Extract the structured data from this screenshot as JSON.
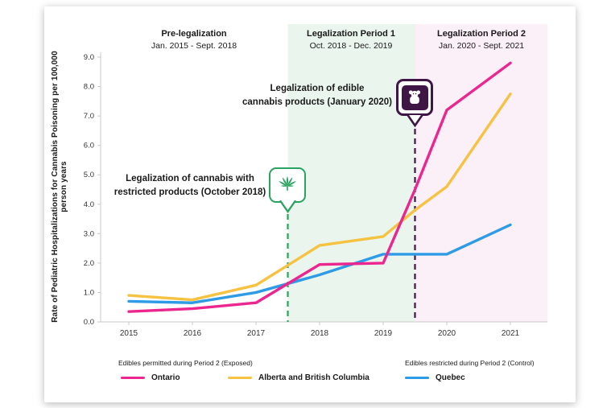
{
  "figure": {
    "y_axis_label": "Rate of Pediatric Hospitalizations for Cannabis Poisoning per 100,000 person years",
    "period_headers": [
      {
        "title": "Pre-legalization",
        "range": "Jan. 2015 - Sept. 2018"
      },
      {
        "title": "Legalization Period 1",
        "range": "Oct. 2018 - Dec. 2019"
      },
      {
        "title": "Legalization Period 2",
        "range": "Jan. 2020 - Sept. 2021"
      }
    ],
    "callouts": [
      {
        "line1": "Legalization of cannabis with",
        "line2": "restricted products (October 2018)",
        "icon": "cannabis-leaf-icon",
        "color": "#2aa360"
      },
      {
        "line1": "Legalization of edible",
        "line2": "cannabis products (January 2020)",
        "icon": "gummy-bear-icon",
        "color": "#3f1546"
      }
    ],
    "legend": {
      "group_labels": [
        "Edibles permitted during Period 2 (Exposed)",
        "Edibles restricted during Period 2 (Control)"
      ],
      "items": [
        {
          "label": "Ontario",
          "color": "#ec268f"
        },
        {
          "label": "Alberta and British Columbia",
          "color": "#f5c242"
        },
        {
          "label": "Quebec",
          "color": "#2e9be6"
        }
      ]
    }
  },
  "chart_data": {
    "type": "line",
    "title": "",
    "xlabel": "",
    "ylabel": "Rate of Pediatric Hospitalizations for Cannabis Poisoning per 100,000 person years",
    "x": [
      2015,
      2016,
      2017,
      2018,
      2019,
      2019.5,
      2020,
      2021
    ],
    "series": [
      {
        "name": "Ontario",
        "color": "#ec268f",
        "values": [
          0.35,
          0.45,
          0.65,
          1.95,
          2.0,
          4.5,
          7.2,
          8.8
        ]
      },
      {
        "name": "Alberta and British Columbia",
        "color": "#f5c242",
        "values": [
          0.9,
          0.75,
          1.25,
          2.6,
          2.9,
          3.8,
          4.6,
          7.75
        ]
      },
      {
        "name": "Quebec",
        "color": "#2e9be6",
        "values": [
          0.7,
          0.65,
          1.0,
          1.6,
          2.3,
          2.3,
          2.3,
          3.3
        ]
      }
    ],
    "x_ticks": [
      "2015",
      "2016",
      "2017",
      "2018",
      "2019",
      "2020",
      "2021"
    ],
    "y_ticks": [
      "0.0",
      "1.0",
      "2.0",
      "3.0",
      "4.0",
      "5.0",
      "6.0",
      "7.0",
      "8.0",
      "9.0"
    ],
    "ylim": [
      0,
      9
    ],
    "grid": false,
    "legend_position": "bottom",
    "vlines": [
      {
        "x": 2017.5,
        "color": "#2aa360",
        "style": "dashed",
        "label": "Legalization of cannabis with restricted products (October 2018)"
      },
      {
        "x": 2019.5,
        "color": "#3f1546",
        "style": "dashed",
        "label": "Legalization of edible cannabis products (January 2020)"
      }
    ],
    "regions": [
      {
        "from": 2017.5,
        "to": 2019.5,
        "color": "#eaf5ee",
        "label": "Legalization Period 1"
      },
      {
        "from": 2019.5,
        "to": "end",
        "color": "#fbeff8",
        "label": "Legalization Period 2"
      }
    ]
  }
}
